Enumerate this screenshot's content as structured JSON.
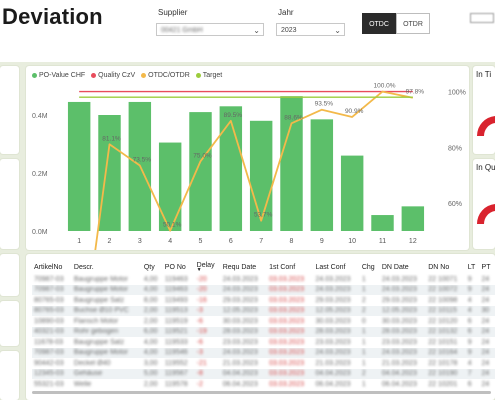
{
  "header": {
    "title": "Deviation"
  },
  "filters": {
    "supplier": {
      "label": "Supplier",
      "value": "00421 GmbH"
    },
    "year": {
      "label": "Jahr",
      "value": "2023"
    }
  },
  "toggles": {
    "otdc": "OTDC",
    "otdr": "OTDR"
  },
  "kpi_cards": {
    "in_time": "In Ti",
    "in_quality": "In Qu"
  },
  "legend": [
    {
      "label": "PO-Value CHF",
      "color": "#5cbf6a"
    },
    {
      "label": "Quality CzV",
      "color": "#e84c5c"
    },
    {
      "label": "OTDC/OTDR",
      "color": "#f3b94a"
    },
    {
      "label": "Target",
      "color": "#9ccc3c"
    }
  ],
  "chart_data": {
    "type": "bar",
    "categories": [
      "1",
      "2",
      "3",
      "4",
      "5",
      "6",
      "7",
      "8",
      "9",
      "10",
      "11",
      "12"
    ],
    "series": [
      {
        "name": "PO-Value CHF",
        "type": "bar",
        "axis": "left",
        "color": "#5cbf6a",
        "values": [
          0.445,
          0.4,
          0.445,
          0.305,
          0.41,
          0.43,
          0.38,
          0.465,
          0.385,
          0.26,
          0.055,
          0.085
        ]
      },
      {
        "name": "Quality CzV",
        "type": "line",
        "axis": "right",
        "color": "#e84c5c",
        "values": [
          100,
          100,
          100,
          100,
          100,
          100,
          100,
          100,
          100,
          100,
          100,
          100
        ]
      },
      {
        "name": "OTDC/OTDR",
        "type": "line",
        "axis": "right",
        "color": "#f3b94a",
        "values": [
          0,
          81.1,
          73.5,
          50.1,
          75.0,
          89.5,
          53.7,
          88.6,
          93.5,
          90.9,
          100.0,
          97.8
        ],
        "labels": [
          "",
          "81.1%",
          "73.5%",
          "50.1%",
          "75.0%",
          "89.5%",
          "53.7%",
          "88.6%",
          "93.5%",
          "90.9%",
          "100.0%",
          "97.8%"
        ]
      },
      {
        "name": "Target",
        "type": "line",
        "axis": "right",
        "color": "#9ccc3c",
        "values": [
          98,
          98,
          98,
          98,
          98,
          98,
          98,
          98,
          98,
          98,
          98,
          98
        ]
      }
    ],
    "left_axis": {
      "ticks": [
        "0.0M",
        "0.2M",
        "0.4M"
      ],
      "tick_values": [
        0,
        0.2,
        0.4
      ],
      "range": [
        0,
        0.5
      ]
    },
    "right_axis": {
      "ticks": [
        "60%",
        "80%",
        "100%"
      ],
      "tick_values": [
        60,
        80,
        100
      ],
      "range": [
        50,
        102
      ]
    },
    "legend_position": "top-left",
    "grid": false
  },
  "table": {
    "columns": [
      "ArtikelNo",
      "Descr.",
      "Qty",
      "PO No",
      "Delay",
      "Requ Date",
      "1st Conf",
      "Last Conf",
      "Chg",
      "DN Date",
      "DN No",
      "LT",
      "PT"
    ],
    "rows": [
      [
        "70987-03",
        "Baugruppe Motor",
        "4,00",
        "119463",
        "-20",
        "24.03.2023",
        "03.03.2023",
        "24.03.2023",
        "1",
        "24.03.2023",
        "22 10071",
        "9",
        "24"
      ],
      [
        "70987-03",
        "Baugruppe Motor",
        "4,00",
        "119463",
        "-20",
        "24.03.2023",
        "03.03.2023",
        "24.03.2023",
        "1",
        "24.03.2023",
        "22 10072",
        "9",
        "24"
      ],
      [
        "80765-03",
        "Baugruppe Satz",
        "8,00",
        "119493",
        "-16",
        "29.03.2023",
        "03.03.2023",
        "29.03.2023",
        "2",
        "29.03.2023",
        "22 10098",
        "4",
        "24"
      ],
      [
        "80765-03",
        "Buchse Ø10 PVC",
        "2,00",
        "119513",
        "-3",
        "12.05.2023",
        "03.03.2023",
        "12.05.2023",
        "2",
        "12.05.2023",
        "22 10115",
        "4",
        "30"
      ],
      [
        "10890-03",
        "Flansch Motor",
        "2,00",
        "119519",
        "-6",
        "30.03.2023",
        "03.03.2023",
        "30.03.2023",
        "0",
        "30.03.2023",
        "22 10120",
        "6",
        "24"
      ],
      [
        "40321-03",
        "Rohr gebogen",
        "6,00",
        "119521",
        "-19",
        "28.03.2023",
        "03.03.2023",
        "28.03.2023",
        "1",
        "28.03.2023",
        "22 10132",
        "6",
        "24"
      ],
      [
        "11678-03",
        "Baugruppe Satz",
        "4,00",
        "119533",
        "-6",
        "23.03.2023",
        "03.03.2023",
        "23.03.2023",
        "1",
        "23.03.2023",
        "22 10151",
        "9",
        "24"
      ],
      [
        "70987-03",
        "Baugruppe Motor",
        "4,00",
        "119546",
        "-3",
        "24.03.2023",
        "03.03.2023",
        "24.03.2023",
        "1",
        "24.03.2023",
        "22 10164",
        "9",
        "24"
      ],
      [
        "90442-03",
        "Deckel Ø40",
        "3,00",
        "119552",
        "-21",
        "21.03.2023",
        "03.03.2023",
        "21.03.2023",
        "1",
        "21.03.2023",
        "22 10178",
        "4",
        "24"
      ],
      [
        "12345-03",
        "Gehäuse",
        "5,00",
        "119567",
        "-8",
        "04.04.2023",
        "03.03.2023",
        "04.04.2023",
        "2",
        "04.04.2023",
        "22 10190",
        "7",
        "24"
      ],
      [
        "55321-03",
        "Welle",
        "2,00",
        "119578",
        "-2",
        "06.04.2023",
        "03.03.2023",
        "06.04.2023",
        "1",
        "06.04.2023",
        "22 10201",
        "6",
        "24"
      ]
    ]
  }
}
